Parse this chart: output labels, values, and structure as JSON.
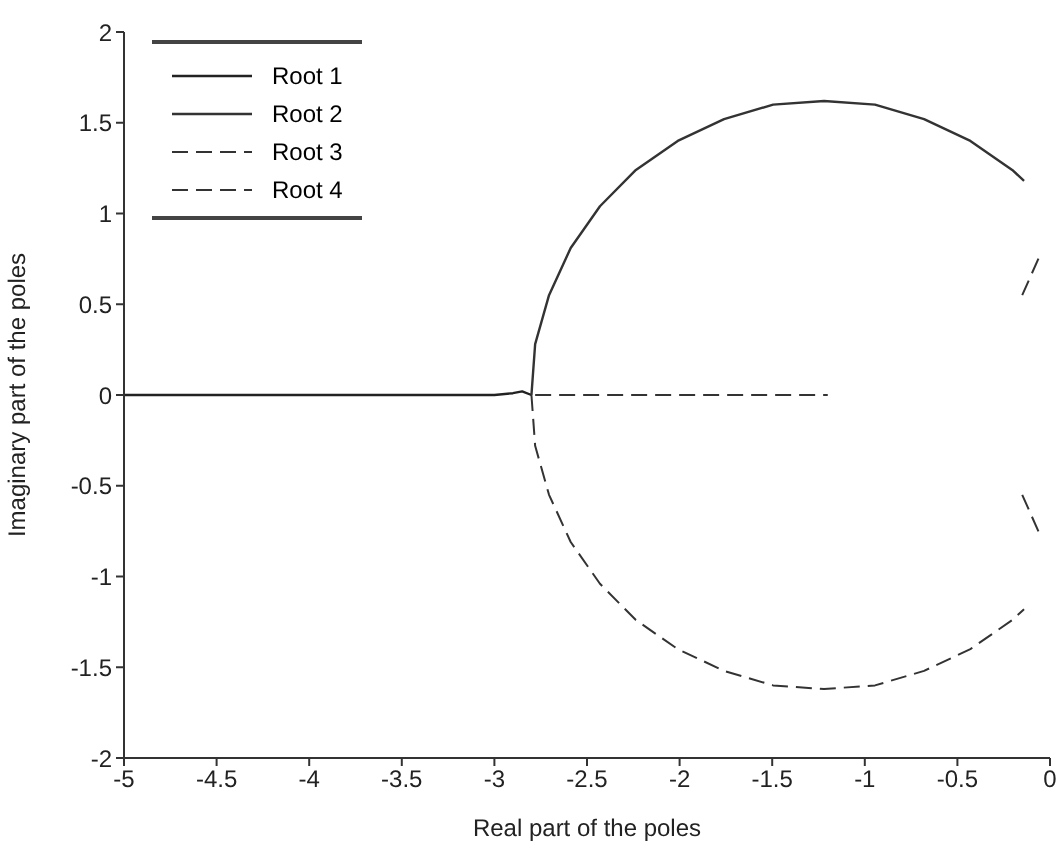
{
  "chart_data": {
    "type": "line",
    "xlabel": "Real part of the poles",
    "ylabel": "Imaginary part of the poles",
    "xlim": [
      -5,
      0
    ],
    "xticks": [
      -5,
      -4.5,
      -4,
      -3.5,
      -3,
      -2.5,
      -2,
      -1.5,
      -1,
      -0.5,
      0
    ],
    "ylim": [
      -2,
      2
    ],
    "yticks": [
      -2,
      -1.5,
      -1,
      -0.5,
      0,
      0.5,
      1,
      1.5,
      2
    ],
    "grid": false,
    "legend": "top left",
    "marker": "none",
    "series": [
      {
        "name": "Root 1",
        "color": "#222222",
        "line_style": "solid",
        "x": [
          -5,
          -4,
          -3.5,
          -3,
          -2.9,
          -2.85,
          -2.8
        ],
        "values": [
          0,
          0,
          0,
          0,
          0.01,
          0.02,
          0
        ]
      },
      {
        "name": "Root 2",
        "color": "#333333",
        "line_style": "solid",
        "x": [
          -2.8,
          -2.78,
          -2.705,
          -2.588,
          -2.43,
          -2.236,
          -2.01,
          -1.76,
          -1.495,
          -1.22,
          -0.945,
          -0.68,
          -0.43,
          -0.204,
          -0.14
        ],
        "values": [
          0,
          0.28,
          0.55,
          0.81,
          1.04,
          1.24,
          1.4,
          1.52,
          1.6,
          1.62,
          1.6,
          1.52,
          1.4,
          1.24,
          1.18
        ]
      },
      {
        "name": "Root 3",
        "color": "#333333",
        "line_style": "dashed",
        "x": [
          -2.8,
          -2.78,
          -2.705,
          -2.588,
          -2.43,
          -2.236,
          -2.01,
          -1.76,
          -1.495,
          -1.22,
          -0.945,
          -0.68,
          -0.43,
          -0.204,
          -0.14
        ],
        "values": [
          0,
          -0.28,
          -0.55,
          -0.81,
          -1.04,
          -1.24,
          -1.4,
          -1.52,
          -1.6,
          -1.62,
          -1.6,
          -1.52,
          -1.4,
          -1.24,
          -1.18
        ]
      },
      {
        "color": "#333333",
        "line_style": "dashed",
        "x": [
          -0.15,
          -0.05
        ],
        "values": [
          0.55,
          0.78
        ]
      },
      {
        "color": "#333333",
        "line_style": "dashed",
        "x": [
          -0.15,
          -0.05
        ],
        "values": [
          -0.55,
          -0.78
        ]
      },
      {
        "name": "Root 4",
        "color": "#333333",
        "line_style": "dashed",
        "x": [
          -2.78,
          -2,
          -1.2
        ],
        "values": [
          0,
          0,
          0
        ]
      }
    ]
  }
}
